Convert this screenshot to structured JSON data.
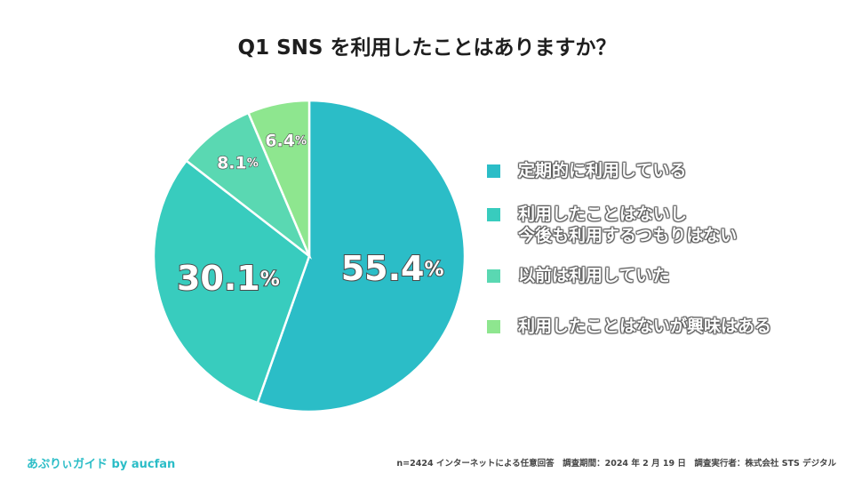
{
  "title": "Q1 SNS を利用したことはありますか？",
  "colors": {
    "regular": "#2bbdc7",
    "not_future": "#38ccbe",
    "previous": "#5ad8b2",
    "interested": "#8ee68f"
  },
  "chart_data": {
    "type": "pie",
    "title": "Q1 SNS を利用したことはありますか？",
    "slices": [
      {
        "label": "定期的に利用している",
        "value": 55.4,
        "display": "55.4",
        "color": "#2bbdc7"
      },
      {
        "label": "利用したことはないし\n今後も利用するつもりはない",
        "value": 30.1,
        "display": "30.1",
        "color": "#38ccbe"
      },
      {
        "label": "以前は利用していた",
        "value": 8.1,
        "display": "8.1",
        "color": "#5ad8b2"
      },
      {
        "label": "利用したことはないが興味はある",
        "value": 6.4,
        "display": "6.4",
        "color": "#8ee68f"
      }
    ],
    "unit": "%",
    "legend": "right"
  },
  "footer": {
    "brand": "あぷりぃガイド by aucfan",
    "note": "n=2424 インターネットによる任意回答　調査期間：2024 年 2 月 19 日　調査実行者：株式会社 STS デジタル"
  }
}
